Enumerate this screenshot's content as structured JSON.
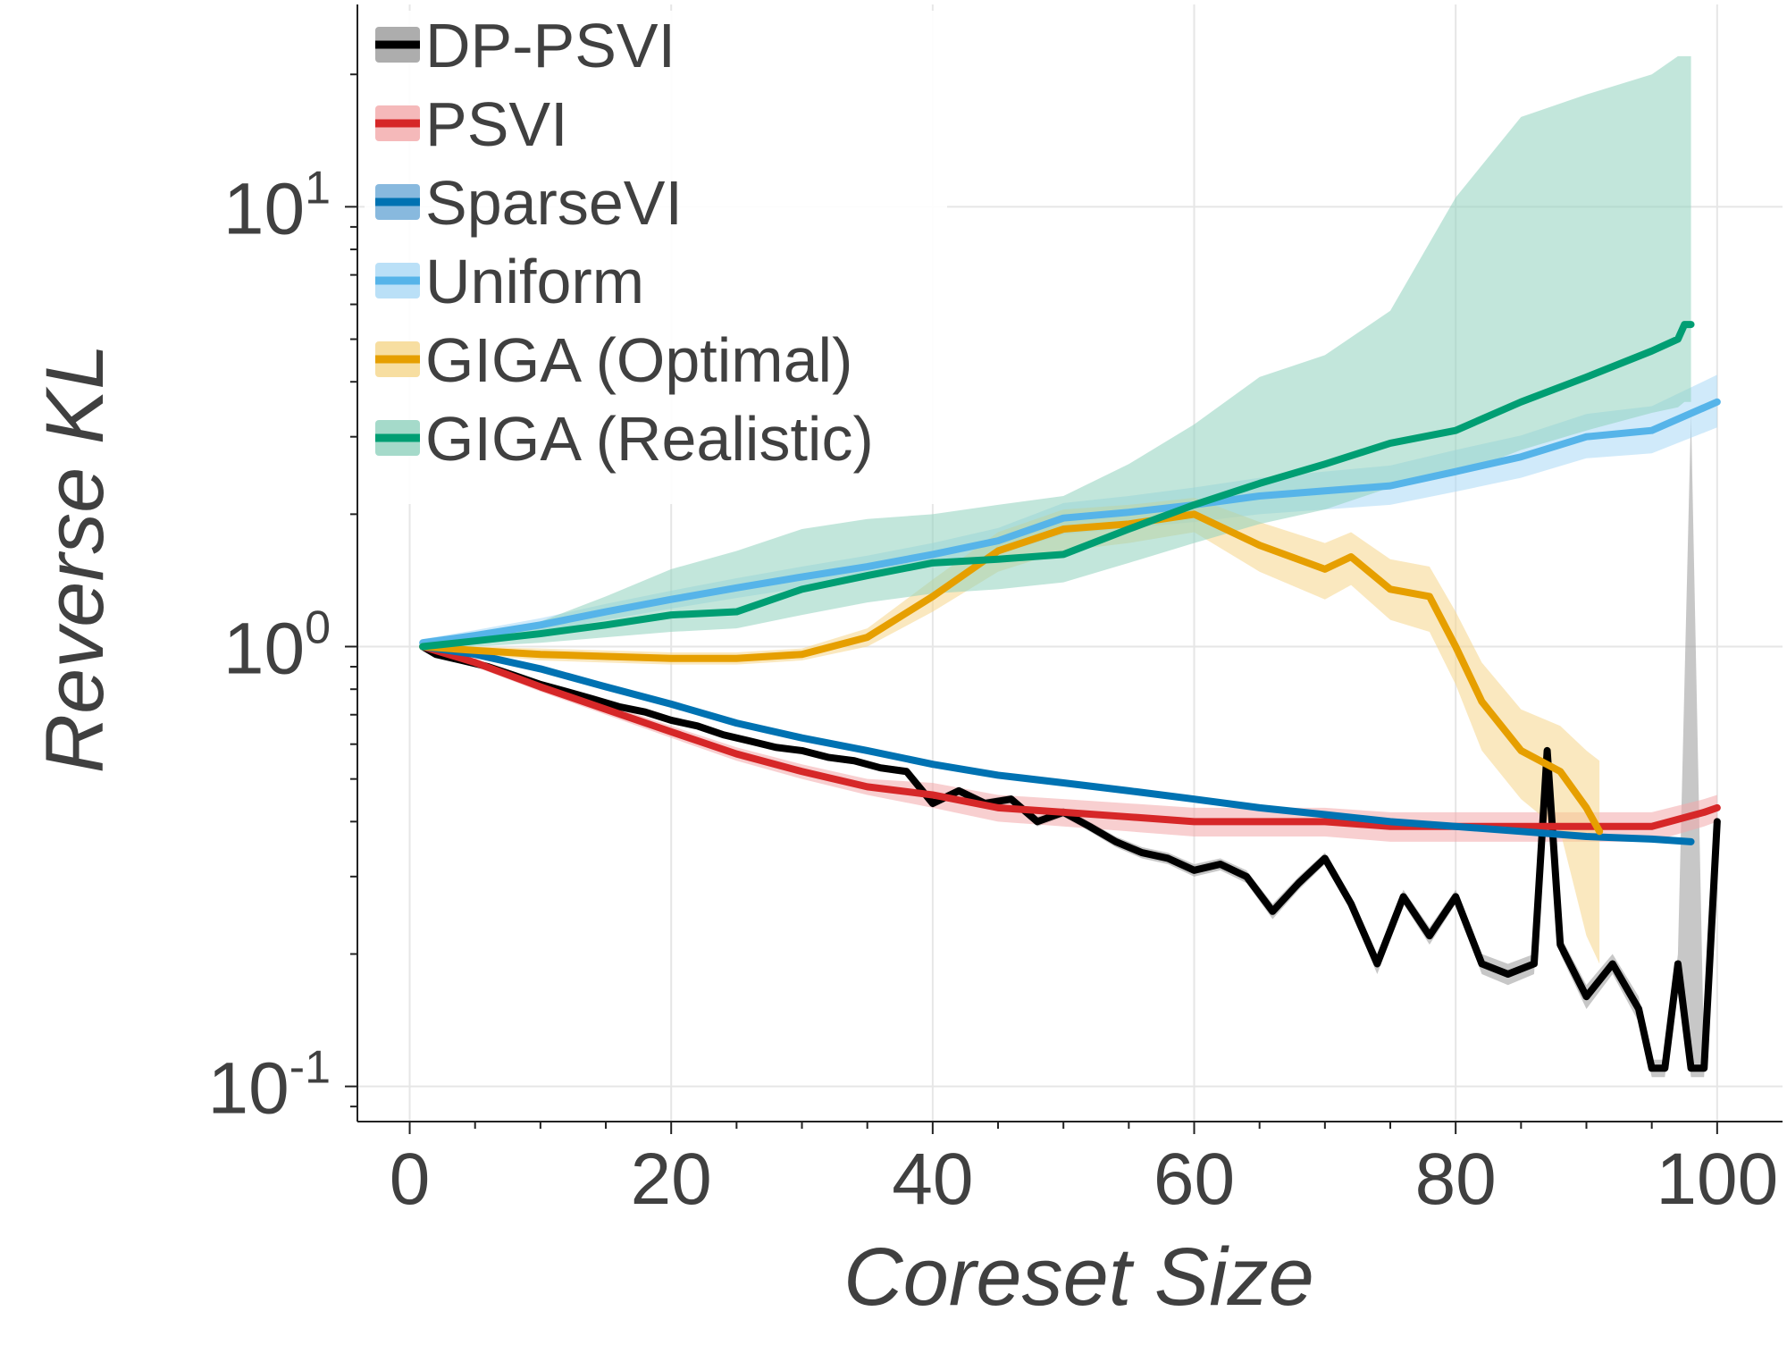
{
  "chart_data": {
    "type": "line",
    "title": "",
    "xlabel": "Coreset Size",
    "ylabel": "Reverse KL",
    "xlim": [
      -4,
      105
    ],
    "ylim_log10": [
      -1.08,
      1.46
    ],
    "yscale": "log",
    "grid": true,
    "legend_position": "top-left",
    "x_ticks": [
      0,
      20,
      40,
      60,
      80,
      100
    ],
    "x_tick_labels": [
      "0",
      "20",
      "40",
      "60",
      "80",
      "100"
    ],
    "y_ticks": [
      0.1,
      1,
      10
    ],
    "y_tick_labels": [
      {
        "base": "10",
        "exp": "-1"
      },
      {
        "base": "10",
        "exp": "0"
      },
      {
        "base": "10",
        "exp": "1"
      }
    ],
    "series": [
      {
        "name": "DP-PSVI",
        "color": "#000000",
        "band_color": "#999999",
        "x": [
          1,
          2,
          4,
          6,
          8,
          10,
          12,
          14,
          16,
          18,
          20,
          22,
          24,
          26,
          28,
          30,
          32,
          34,
          36,
          38,
          40,
          42,
          44,
          46,
          48,
          50,
          52,
          54,
          56,
          58,
          60,
          62,
          64,
          66,
          68,
          70,
          72,
          74,
          76,
          78,
          80,
          82,
          84,
          86,
          87,
          88,
          90,
          92,
          94,
          95,
          96,
          97,
          98,
          99,
          100
        ],
        "y": [
          1.0,
          0.96,
          0.93,
          0.9,
          0.86,
          0.82,
          0.79,
          0.76,
          0.73,
          0.71,
          0.68,
          0.66,
          0.63,
          0.61,
          0.59,
          0.58,
          0.56,
          0.55,
          0.53,
          0.52,
          0.44,
          0.47,
          0.44,
          0.45,
          0.4,
          0.42,
          0.39,
          0.36,
          0.34,
          0.33,
          0.31,
          0.32,
          0.3,
          0.25,
          0.29,
          0.33,
          0.26,
          0.19,
          0.27,
          0.22,
          0.27,
          0.19,
          0.18,
          0.19,
          0.58,
          0.21,
          0.16,
          0.19,
          0.15,
          0.11,
          0.11,
          0.19,
          0.11,
          0.11,
          0.4
        ],
        "lower": [
          0.995,
          0.955,
          0.92,
          0.89,
          0.85,
          0.81,
          0.78,
          0.75,
          0.72,
          0.7,
          0.67,
          0.65,
          0.62,
          0.6,
          0.58,
          0.57,
          0.55,
          0.54,
          0.52,
          0.51,
          0.43,
          0.46,
          0.43,
          0.44,
          0.39,
          0.41,
          0.38,
          0.35,
          0.33,
          0.32,
          0.3,
          0.31,
          0.29,
          0.24,
          0.28,
          0.32,
          0.25,
          0.18,
          0.26,
          0.21,
          0.26,
          0.18,
          0.17,
          0.18,
          0.56,
          0.2,
          0.15,
          0.18,
          0.14,
          0.105,
          0.105,
          0.18,
          0.105,
          0.105,
          0.38
        ],
        "upper": [
          1.005,
          0.965,
          0.94,
          0.91,
          0.87,
          0.83,
          0.8,
          0.77,
          0.74,
          0.72,
          0.69,
          0.67,
          0.64,
          0.62,
          0.6,
          0.59,
          0.57,
          0.56,
          0.54,
          0.53,
          0.45,
          0.48,
          0.45,
          0.46,
          0.41,
          0.43,
          0.4,
          0.37,
          0.35,
          0.34,
          0.32,
          0.33,
          0.31,
          0.26,
          0.3,
          0.34,
          0.27,
          0.2,
          0.28,
          0.23,
          0.28,
          0.2,
          0.19,
          0.2,
          0.6,
          0.22,
          0.17,
          0.2,
          0.16,
          0.115,
          0.115,
          0.2,
          3.4,
          0.115,
          0.42
        ]
      },
      {
        "name": "PSVI",
        "color": "#d62728",
        "band_color": "#f2a7a9",
        "x": [
          1,
          5,
          10,
          15,
          20,
          25,
          30,
          35,
          40,
          45,
          50,
          55,
          60,
          65,
          70,
          75,
          80,
          85,
          90,
          95,
          99,
          100
        ],
        "y": [
          1.0,
          0.92,
          0.81,
          0.72,
          0.64,
          0.57,
          0.52,
          0.48,
          0.46,
          0.43,
          0.42,
          0.41,
          0.4,
          0.4,
          0.4,
          0.39,
          0.39,
          0.39,
          0.39,
          0.39,
          0.42,
          0.43
        ],
        "lower": [
          0.99,
          0.9,
          0.79,
          0.7,
          0.62,
          0.55,
          0.5,
          0.46,
          0.43,
          0.4,
          0.39,
          0.38,
          0.37,
          0.37,
          0.37,
          0.36,
          0.36,
          0.36,
          0.36,
          0.36,
          0.39,
          0.4
        ],
        "upper": [
          1.01,
          0.94,
          0.83,
          0.74,
          0.66,
          0.59,
          0.54,
          0.5,
          0.49,
          0.46,
          0.45,
          0.44,
          0.43,
          0.43,
          0.43,
          0.42,
          0.42,
          0.42,
          0.42,
          0.42,
          0.45,
          0.46
        ]
      },
      {
        "name": "SparseVI",
        "color": "#0072b2",
        "band_color": "#6aa8d6",
        "x": [
          1,
          5,
          10,
          15,
          20,
          25,
          30,
          35,
          40,
          45,
          50,
          55,
          60,
          65,
          70,
          75,
          80,
          85,
          90,
          95,
          98
        ],
        "y": [
          1.0,
          0.96,
          0.89,
          0.81,
          0.74,
          0.67,
          0.62,
          0.58,
          0.54,
          0.51,
          0.49,
          0.47,
          0.45,
          0.43,
          0.415,
          0.4,
          0.39,
          0.38,
          0.37,
          0.365,
          0.36
        ],
        "lower": [
          0.995,
          0.955,
          0.885,
          0.805,
          0.735,
          0.665,
          0.615,
          0.575,
          0.535,
          0.505,
          0.485,
          0.465,
          0.445,
          0.425,
          0.41,
          0.395,
          0.385,
          0.375,
          0.365,
          0.36,
          0.355
        ],
        "upper": [
          1.005,
          0.965,
          0.895,
          0.815,
          0.745,
          0.675,
          0.625,
          0.585,
          0.545,
          0.515,
          0.495,
          0.475,
          0.455,
          0.435,
          0.42,
          0.405,
          0.395,
          0.385,
          0.375,
          0.37,
          0.365
        ]
      },
      {
        "name": "Uniform",
        "color": "#56b4e9",
        "band_color": "#a9d8f5",
        "x": [
          1,
          5,
          10,
          15,
          20,
          25,
          30,
          35,
          40,
          45,
          50,
          55,
          60,
          65,
          70,
          75,
          80,
          85,
          90,
          95,
          100
        ],
        "y": [
          1.02,
          1.06,
          1.12,
          1.2,
          1.28,
          1.36,
          1.44,
          1.52,
          1.62,
          1.74,
          1.96,
          2.02,
          2.1,
          2.2,
          2.26,
          2.32,
          2.5,
          2.7,
          3.0,
          3.1,
          3.6
        ],
        "lower": [
          1.0,
          1.03,
          1.08,
          1.15,
          1.22,
          1.29,
          1.36,
          1.43,
          1.52,
          1.62,
          1.8,
          1.86,
          1.92,
          2.0,
          2.05,
          2.1,
          2.25,
          2.42,
          2.68,
          2.75,
          3.15
        ],
        "upper": [
          1.04,
          1.09,
          1.16,
          1.25,
          1.34,
          1.43,
          1.52,
          1.61,
          1.72,
          1.86,
          2.12,
          2.2,
          2.3,
          2.42,
          2.5,
          2.58,
          2.8,
          3.02,
          3.38,
          3.52,
          4.15
        ]
      },
      {
        "name": "GIGA (Optimal)",
        "color": "#e69f00",
        "band_color": "#f5d68a",
        "x": [
          1,
          5,
          10,
          15,
          20,
          25,
          30,
          35,
          40,
          45,
          50,
          55,
          60,
          65,
          70,
          72,
          75,
          78,
          80,
          82,
          85,
          88,
          90,
          91
        ],
        "y": [
          1.0,
          0.98,
          0.96,
          0.95,
          0.94,
          0.94,
          0.96,
          1.05,
          1.3,
          1.65,
          1.85,
          1.9,
          2.0,
          1.7,
          1.5,
          1.6,
          1.35,
          1.3,
          1.0,
          0.75,
          0.58,
          0.52,
          0.43,
          0.38
        ],
        "lower": [
          0.99,
          0.96,
          0.93,
          0.92,
          0.91,
          0.91,
          0.93,
          1.0,
          1.2,
          1.48,
          1.65,
          1.72,
          1.82,
          1.48,
          1.28,
          1.38,
          1.15,
          1.08,
          0.82,
          0.58,
          0.45,
          0.38,
          0.22,
          0.19
        ],
        "upper": [
          1.01,
          1.0,
          0.99,
          0.98,
          0.97,
          0.97,
          0.99,
          1.1,
          1.42,
          1.82,
          2.05,
          2.1,
          2.18,
          1.92,
          1.72,
          1.82,
          1.58,
          1.52,
          1.2,
          0.92,
          0.72,
          0.66,
          0.58,
          0.55
        ]
      },
      {
        "name": "GIGA (Realistic)",
        "color": "#009e73",
        "band_color": "#8fd1bd",
        "x": [
          1,
          5,
          10,
          15,
          20,
          25,
          30,
          35,
          40,
          45,
          50,
          55,
          60,
          65,
          70,
          75,
          80,
          85,
          90,
          95,
          97,
          97.5,
          98
        ],
        "y": [
          1.0,
          1.03,
          1.07,
          1.12,
          1.18,
          1.2,
          1.35,
          1.45,
          1.55,
          1.58,
          1.62,
          1.85,
          2.1,
          2.35,
          2.6,
          2.9,
          3.1,
          3.6,
          4.1,
          4.7,
          5.0,
          5.4,
          5.4
        ],
        "lower": [
          0.99,
          1.0,
          1.02,
          1.05,
          1.08,
          1.1,
          1.18,
          1.26,
          1.32,
          1.35,
          1.4,
          1.55,
          1.72,
          1.9,
          2.05,
          2.3,
          2.45,
          2.8,
          3.1,
          3.4,
          3.5,
          3.6,
          3.6
        ],
        "upper": [
          1.01,
          1.07,
          1.14,
          1.3,
          1.5,
          1.65,
          1.85,
          1.95,
          2.0,
          2.1,
          2.2,
          2.6,
          3.2,
          4.1,
          4.6,
          5.8,
          10.5,
          16.0,
          18.0,
          20.0,
          22.0,
          22.0,
          22.0
        ]
      }
    ]
  }
}
